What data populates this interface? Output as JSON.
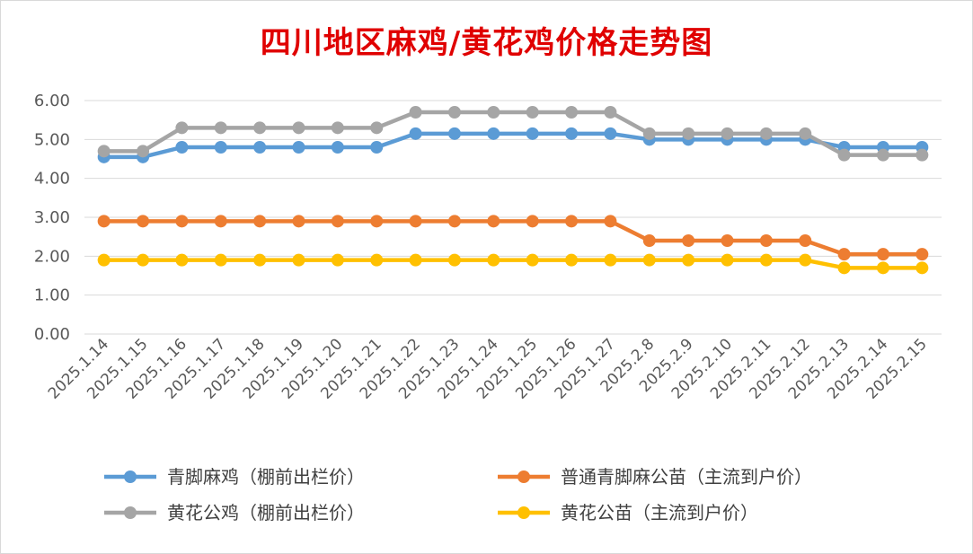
{
  "chart_data": {
    "type": "line",
    "title": "四川地区麻鸡/黄花鸡价格走势图",
    "xlabel": "",
    "ylabel": "",
    "ylim": [
      0,
      6
    ],
    "yticks": [
      "0.00",
      "1.00",
      "2.00",
      "3.00",
      "4.00",
      "5.00",
      "6.00"
    ],
    "grid": true,
    "legend_position": "bottom",
    "categories": [
      "2025.1.14",
      "2025.1.15",
      "2025.1.16",
      "2025.1.17",
      "2025.1.18",
      "2025.1.19",
      "2025.1.20",
      "2025.1.21",
      "2025.1.22",
      "2025.1.23",
      "2025.1.24",
      "2025.1.25",
      "2025.1.26",
      "2025.1.27",
      "2025.2.8",
      "2025.2.9",
      "2025.2.10",
      "2025.2.11",
      "2025.2.12",
      "2025.2.13",
      "2025.2.14",
      "2025.2.15"
    ],
    "series": [
      {
        "name": "青脚麻鸡（棚前出栏价）",
        "color": "#5b9bd5",
        "values": [
          4.55,
          4.55,
          4.8,
          4.8,
          4.8,
          4.8,
          4.8,
          4.8,
          5.15,
          5.15,
          5.15,
          5.15,
          5.15,
          5.15,
          5.0,
          5.0,
          5.0,
          5.0,
          5.0,
          4.8,
          4.8,
          4.8
        ]
      },
      {
        "name": "普通青脚麻公苗（主流到户价）",
        "color": "#ed7d31",
        "values": [
          2.9,
          2.9,
          2.9,
          2.9,
          2.9,
          2.9,
          2.9,
          2.9,
          2.9,
          2.9,
          2.9,
          2.9,
          2.9,
          2.9,
          2.4,
          2.4,
          2.4,
          2.4,
          2.4,
          2.05,
          2.05,
          2.05
        ]
      },
      {
        "name": "黄花公鸡（棚前出栏价）",
        "color": "#a5a5a5",
        "values": [
          4.7,
          4.7,
          5.3,
          5.3,
          5.3,
          5.3,
          5.3,
          5.3,
          5.7,
          5.7,
          5.7,
          5.7,
          5.7,
          5.7,
          5.15,
          5.15,
          5.15,
          5.15,
          5.15,
          4.6,
          4.6,
          4.6
        ]
      },
      {
        "name": "黄花公苗（主流到户价）",
        "color": "#ffc000",
        "values": [
          1.9,
          1.9,
          1.9,
          1.9,
          1.9,
          1.9,
          1.9,
          1.9,
          1.9,
          1.9,
          1.9,
          1.9,
          1.9,
          1.9,
          1.9,
          1.9,
          1.9,
          1.9,
          1.9,
          1.7,
          1.7,
          1.7
        ]
      }
    ]
  }
}
